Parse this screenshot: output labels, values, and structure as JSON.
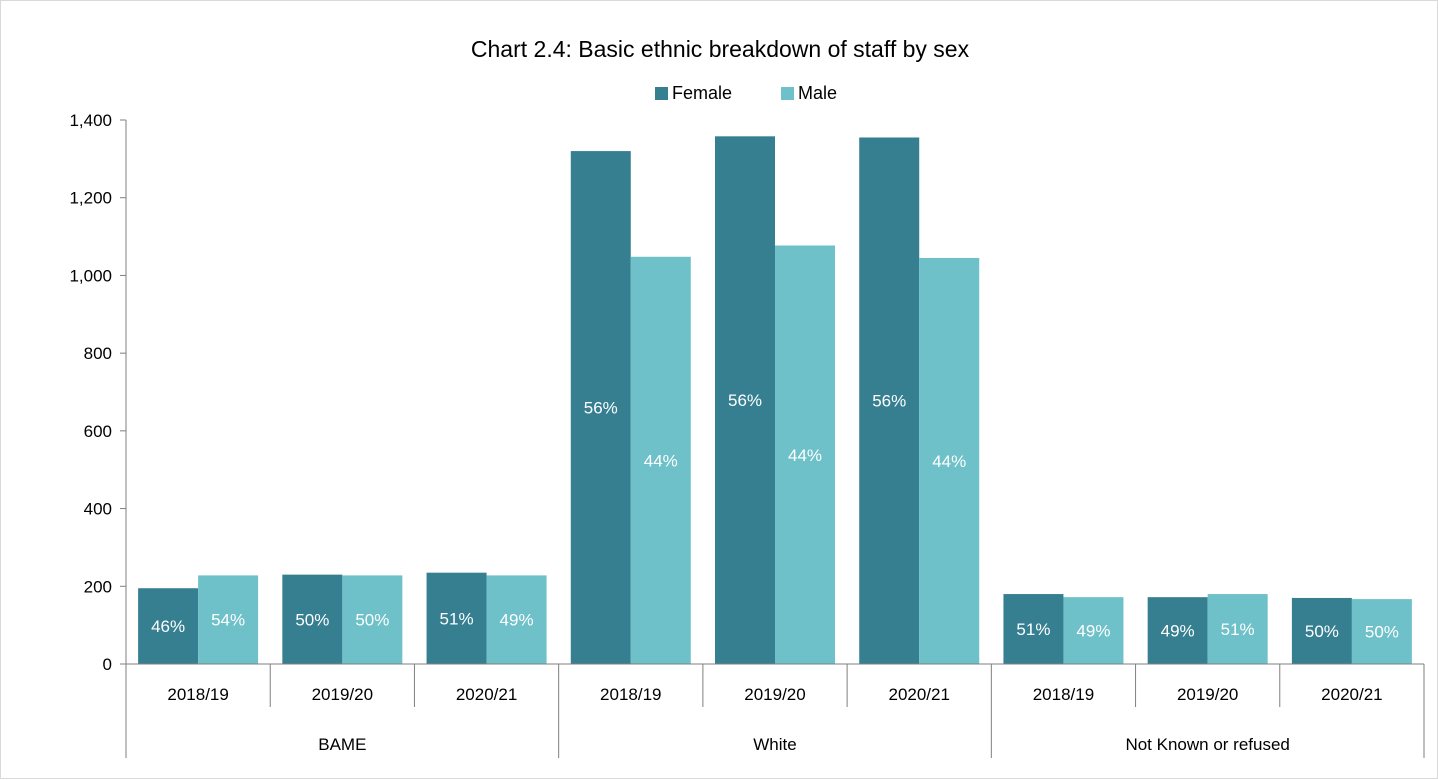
{
  "chart_data": {
    "type": "bar",
    "title": "Chart 2.4: Basic ethnic breakdown of staff by sex",
    "xlabel": "",
    "ylabel": "",
    "ylim": [
      0,
      1400
    ],
    "yticks": [
      0,
      200,
      400,
      600,
      800,
      1000,
      1200,
      1400
    ],
    "ytick_labels": [
      "0",
      "200",
      "400",
      "600",
      "800",
      "1,000",
      "1,200",
      "1,400"
    ],
    "groups": [
      {
        "name": "BAME",
        "categories": [
          "2018/19",
          "2019/20",
          "2020/21"
        ]
      },
      {
        "name": "White",
        "categories": [
          "2018/19",
          "2019/20",
          "2020/21"
        ]
      },
      {
        "name": "Not Known or refused",
        "categories": [
          "2018/19",
          "2019/20",
          "2020/21"
        ]
      }
    ],
    "categories": [
      "2018/19",
      "2019/20",
      "2020/21",
      "2018/19",
      "2019/20",
      "2020/21",
      "2018/19",
      "2019/20",
      "2020/21"
    ],
    "series": [
      {
        "name": "Female",
        "color": "#357f91",
        "values": [
          195,
          230,
          235,
          1320,
          1358,
          1355,
          180,
          172,
          170
        ],
        "labels": [
          "46%",
          "50%",
          "51%",
          "56%",
          "56%",
          "56%",
          "51%",
          "49%",
          "50%"
        ]
      },
      {
        "name": "Male",
        "color": "#6ec0c9",
        "values": [
          228,
          228,
          228,
          1048,
          1077,
          1045,
          172,
          180,
          167
        ],
        "labels": [
          "54%",
          "50%",
          "49%",
          "44%",
          "44%",
          "44%",
          "49%",
          "51%",
          "50%"
        ]
      }
    ],
    "legend": {
      "position": "top-center"
    },
    "grid": false
  }
}
